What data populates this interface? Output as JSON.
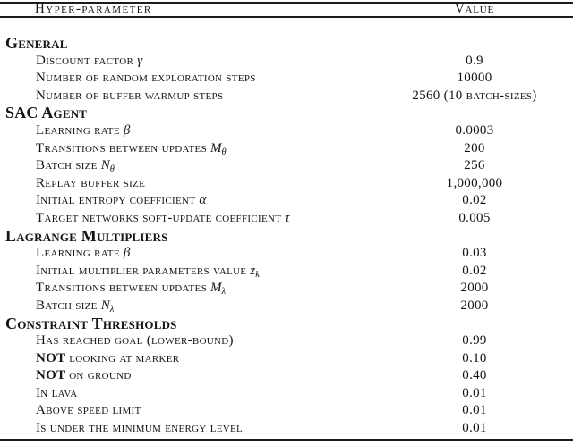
{
  "table": {
    "header": {
      "param": "Hyper-parameter",
      "value": "Value"
    },
    "rows": [
      {
        "type": "section",
        "label": "General"
      },
      {
        "type": "row",
        "label": "Discount factor ",
        "math": "γ",
        "value": "0.9"
      },
      {
        "type": "row",
        "label": "Number of random exploration steps",
        "value": "10000"
      },
      {
        "type": "row",
        "label": "Number of buffer warmup steps",
        "value": "2560 (10 batch-sizes)"
      },
      {
        "type": "section",
        "label": "SAC Agent"
      },
      {
        "type": "row",
        "label": "Learning rate ",
        "math": "β",
        "value": "0.0003"
      },
      {
        "type": "row",
        "label": "Transitions between updates ",
        "math": "M",
        "sub": "θ",
        "value": "200"
      },
      {
        "type": "row",
        "label": "Batch size ",
        "math": "N",
        "sub": "θ",
        "value": "256"
      },
      {
        "type": "row",
        "label": "Replay buffer size",
        "value": "1,000,000"
      },
      {
        "type": "row",
        "label": "Initial entropy coefficient ",
        "math": "α",
        "value": "0.02"
      },
      {
        "type": "row",
        "label": "Target networks soft-update coefficient ",
        "math": "τ",
        "value": "0.005"
      },
      {
        "type": "section",
        "label": "Lagrange Multipliers"
      },
      {
        "type": "row",
        "label": "Learning rate ",
        "math": "β",
        "value": "0.03"
      },
      {
        "type": "row",
        "label": "Initial multiplier parameters value ",
        "math": "z",
        "sub": "k",
        "value": "0.02"
      },
      {
        "type": "row",
        "label": "Transitions between updates ",
        "math": "M",
        "sub": "λ",
        "value": "2000"
      },
      {
        "type": "row",
        "label": "Batch size ",
        "math": "N",
        "sub": "λ",
        "value": "2000"
      },
      {
        "type": "section",
        "label": "Constraint Thresholds"
      },
      {
        "type": "row",
        "label": "Has reached goal (lower-bound)",
        "value": "0.99"
      },
      {
        "type": "row",
        "bold_prefix": "NOT ",
        "label": "looking at marker",
        "value": "0.10"
      },
      {
        "type": "row",
        "bold_prefix": "NOT ",
        "label": "on ground",
        "value": "0.40"
      },
      {
        "type": "row",
        "label": "In lava",
        "value": "0.01"
      },
      {
        "type": "row",
        "label": "Above speed limit",
        "value": "0.01"
      },
      {
        "type": "row",
        "label": "Is under the minimum energy level",
        "value": "0.01"
      }
    ]
  }
}
